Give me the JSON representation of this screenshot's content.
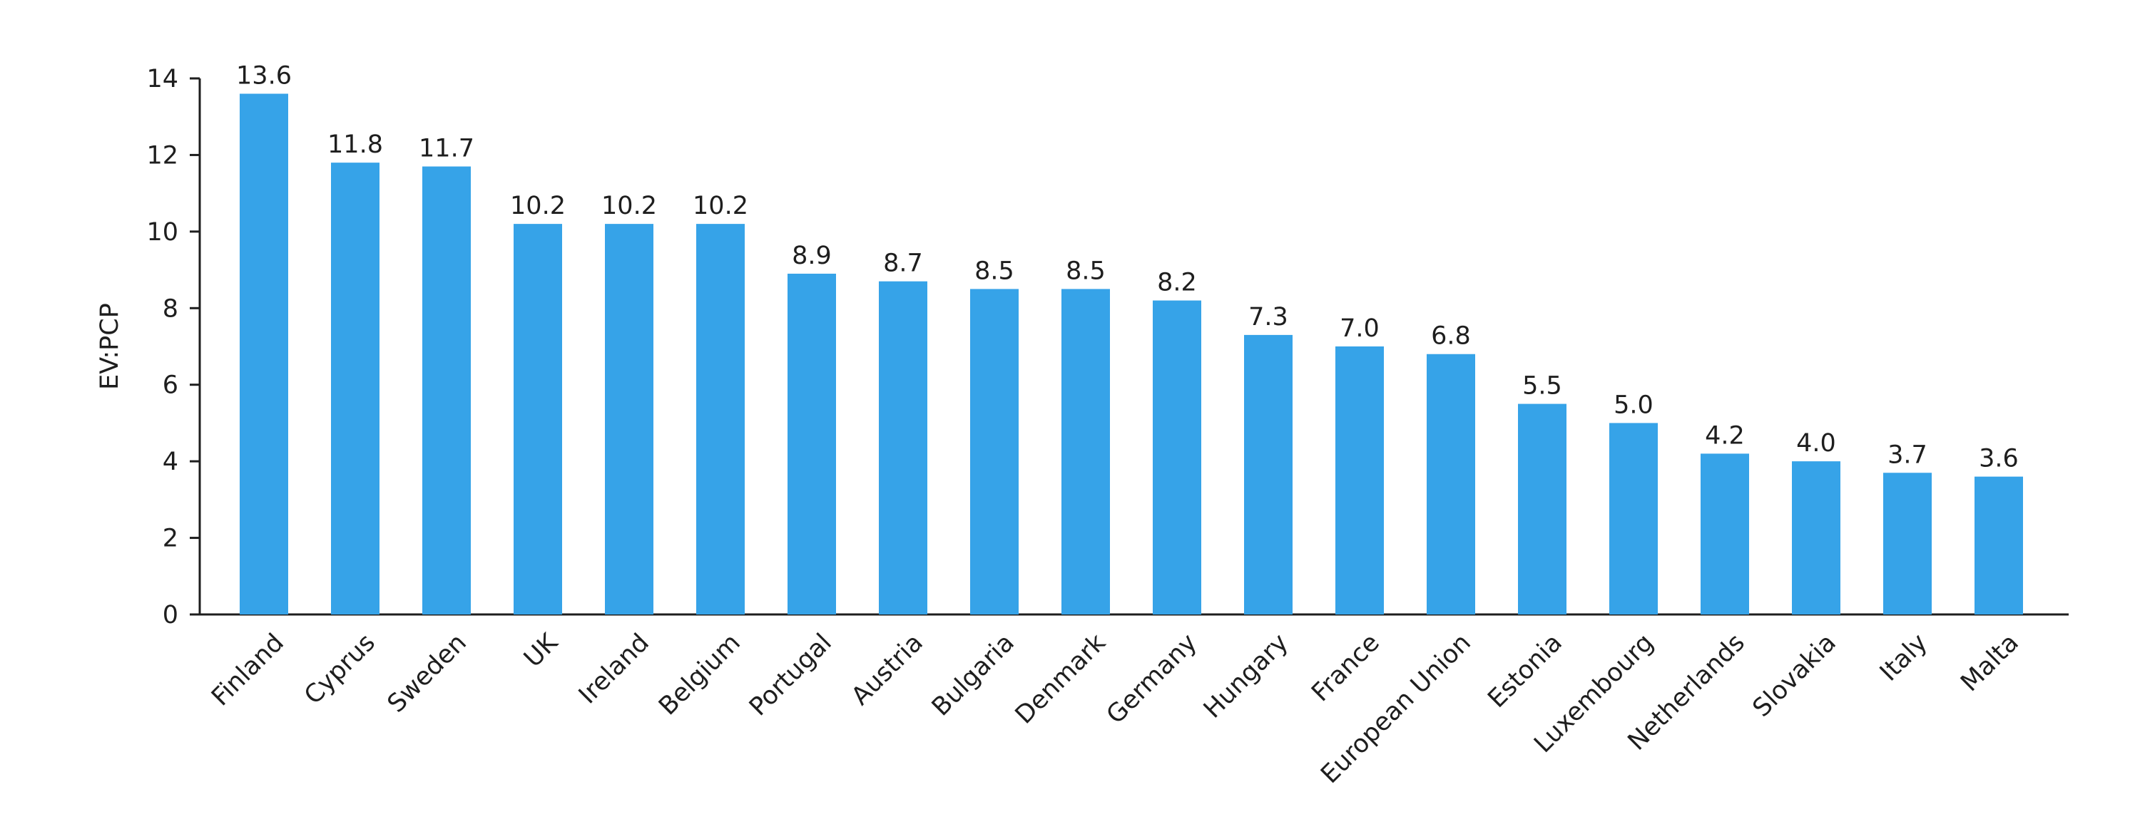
{
  "chart_data": {
    "type": "bar",
    "ylabel": "EV:PCP",
    "xlabel": "",
    "ylim": [
      0,
      14
    ],
    "yticks": [
      0,
      2,
      4,
      6,
      8,
      10,
      12,
      14
    ],
    "grid": false,
    "bar_color": "#36a3e8",
    "axis_color": "#1e1e1e",
    "categories": [
      "Finland",
      "Cyprus",
      "Sweden",
      "UK",
      "Ireland",
      "Belgium",
      "Portugal",
      "Austria",
      "Bulgaria",
      "Denmark",
      "Germany",
      "Hungary",
      "France",
      "European Union",
      "Estonia",
      "Luxembourg",
      "Netherlands",
      "Slovakia",
      "Italy",
      "Malta"
    ],
    "values": [
      13.6,
      11.8,
      11.7,
      10.2,
      10.2,
      10.2,
      8.9,
      8.7,
      8.5,
      8.5,
      8.2,
      7.3,
      7.0,
      6.8,
      5.5,
      5.0,
      4.2,
      4.0,
      3.7,
      3.6
    ],
    "value_labels": [
      "13.6",
      "11.8",
      "11.7",
      "10.2",
      "10.2",
      "10.2",
      "8.9",
      "8.7",
      "8.5",
      "8.5",
      "8.2",
      "7.3",
      "7.0",
      "6.8",
      "5.5",
      "5.0",
      "4.2",
      "4.0",
      "3.7",
      "3.6"
    ]
  }
}
